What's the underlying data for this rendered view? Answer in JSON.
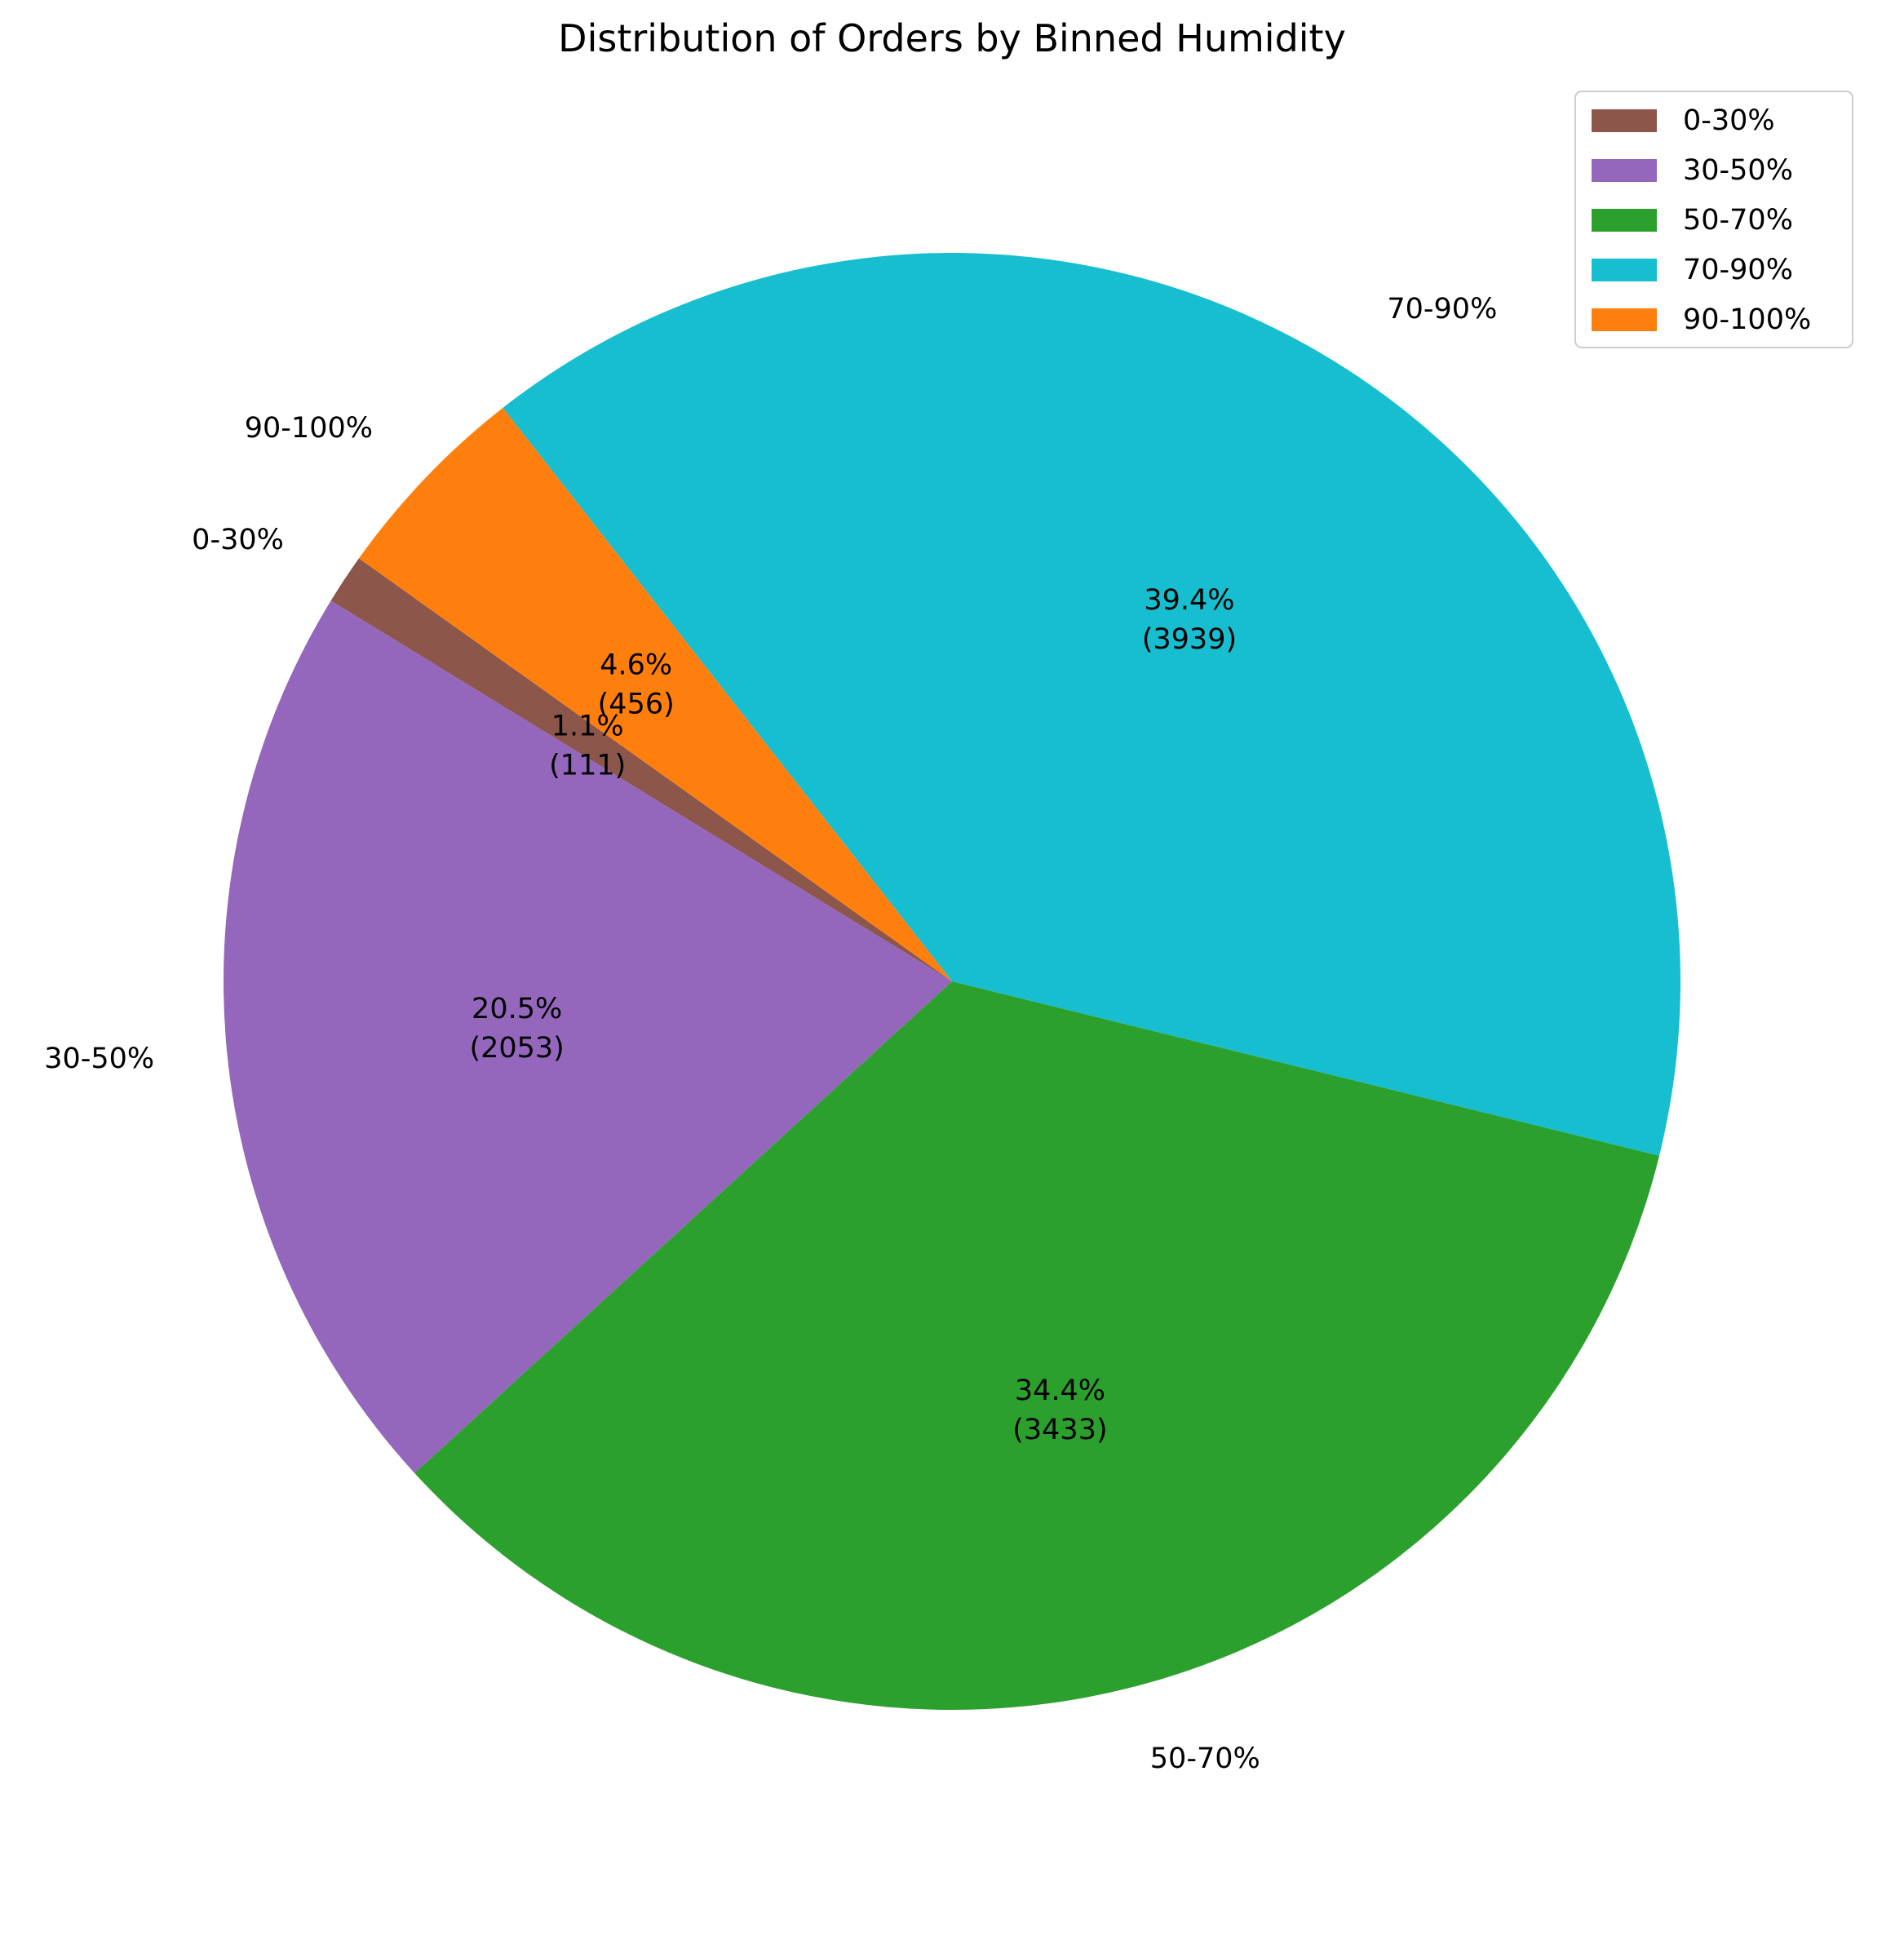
{
  "chart_data": {
    "type": "pie",
    "title": "Distribution of Orders by Binned Humidity",
    "legend_position": "top-right",
    "slices": [
      {
        "label": "0-30%",
        "value": 111,
        "percent_label": "1.1%",
        "count_label": "(111)",
        "color": "#8c564b"
      },
      {
        "label": "30-50%",
        "value": 2053,
        "percent_label": "20.5%",
        "count_label": "(2053)",
        "color": "#9467bd"
      },
      {
        "label": "50-70%",
        "value": 3433,
        "percent_label": "34.4%",
        "count_label": "(3433)",
        "color": "#2ca02c"
      },
      {
        "label": "70-90%",
        "value": 3939,
        "percent_label": "39.4%",
        "count_label": "(3939)",
        "color": "#17becf"
      },
      {
        "label": "90-100%",
        "value": 456,
        "percent_label": "4.6%",
        "count_label": "(456)",
        "color": "#ff7f0e"
      }
    ]
  }
}
